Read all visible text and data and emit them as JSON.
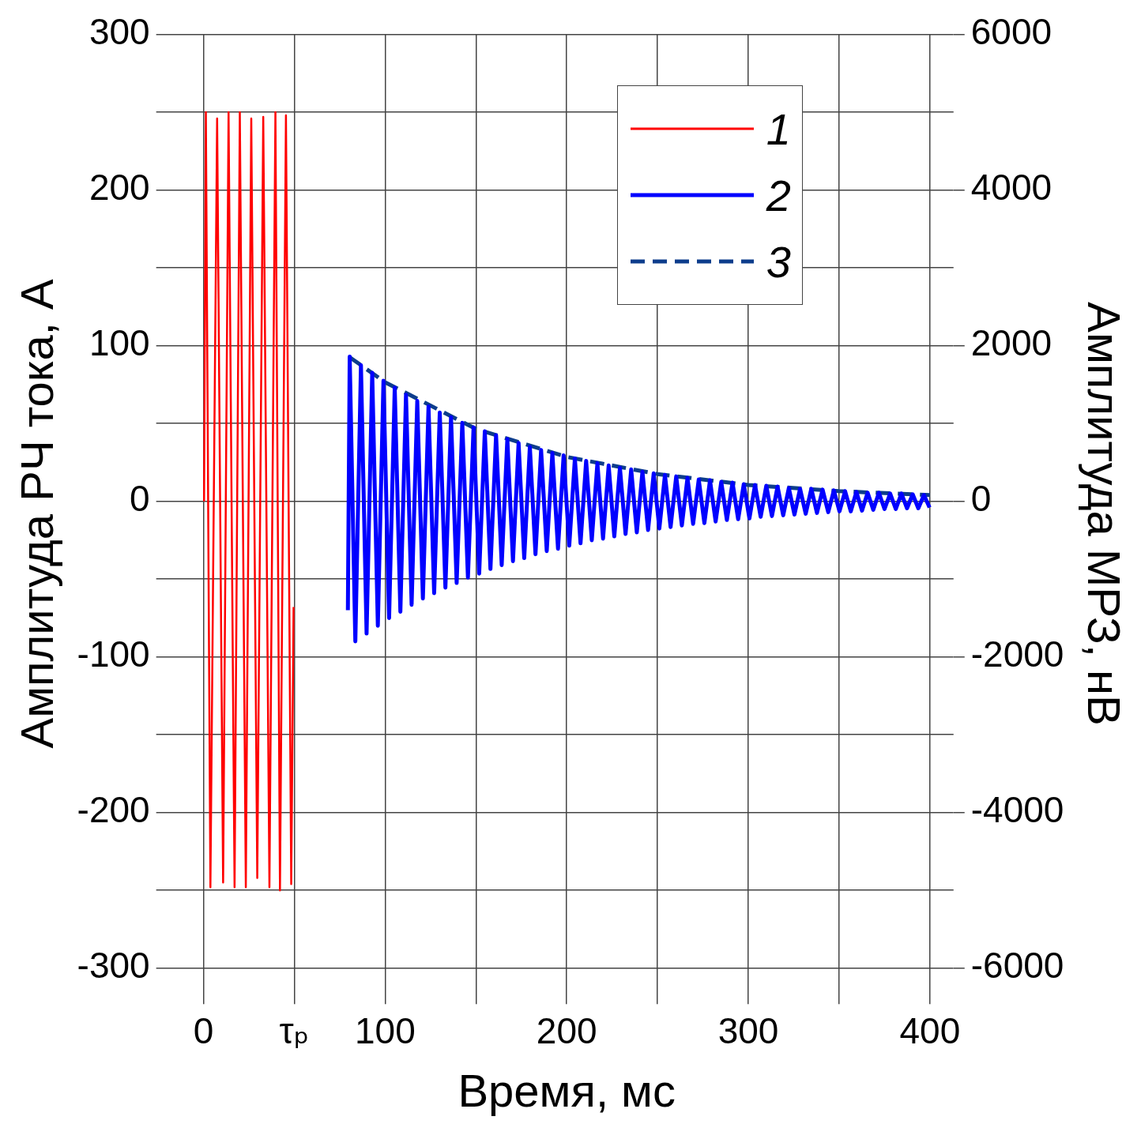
{
  "chart_data": {
    "type": "line",
    "xlabel": "Время, мс",
    "ylabel": "Амплитуда РЧ тока, А",
    "y2label": "Амплитуда МРЗ, нВ",
    "xlim": [
      -13,
      413
    ],
    "xticks": [
      0,
      {
        "value": 50,
        "label": "τₚ"
      },
      100,
      {
        "value": 150,
        "label": null
      },
      200,
      {
        "value": 250,
        "label": null
      },
      300,
      {
        "value": 350,
        "label": null
      },
      400
    ],
    "ylim": [
      -316,
      300
    ],
    "yticks": [
      -300,
      {
        "value": -250,
        "label": null
      },
      -200,
      {
        "value": -150,
        "label": null
      },
      -100,
      {
        "value": -50,
        "label": null
      },
      0,
      {
        "value": 50,
        "label": null
      },
      100,
      {
        "value": 150,
        "label": null
      },
      200,
      {
        "value": 250,
        "label": null
      },
      300
    ],
    "y2lim": [
      -6320,
      6000
    ],
    "y2ticks": [
      -6000,
      -4000,
      -2000,
      0,
      2000,
      4000,
      6000
    ],
    "grid": true,
    "legend": "top right",
    "series": [
      {
        "name": "1",
        "color": "#ff0000",
        "x": [
          0.3,
          1.3,
          3.8,
          7.5,
          10.8,
          13.8,
          17.1,
          20,
          23.3,
          26.3,
          29.6,
          32.9,
          36.3,
          39.6,
          42.1,
          45.4,
          48.3,
          49.6
        ],
        "values": [
          0,
          250,
          -248,
          246,
          -245,
          250,
          -248,
          250,
          -248,
          246,
          -242,
          247,
          -248,
          250,
          -250,
          248,
          -246,
          -68
        ]
      },
      {
        "name": "2",
        "color": "#0000ff",
        "axis": "y2",
        "x": [
          79.5,
          80.5,
          83.6,
          86.7,
          89.8,
          92.9,
          96.0,
          99.1,
          102.2,
          105.3,
          108.4,
          111.5,
          114.6,
          117.7,
          120.8,
          123.9,
          127.0,
          130.1,
          133.2,
          136.3,
          139.4,
          142.5,
          145.6,
          148.7,
          151.8,
          154.9,
          158.0,
          161.1,
          164.2,
          167.3,
          170.4,
          173.5,
          176.6,
          179.7,
          182.8,
          185.9,
          189.0,
          192.1,
          195.2,
          198.3,
          201.4,
          204.5,
          207.6,
          210.7,
          213.8,
          216.9,
          220.0,
          223.1,
          226.2,
          229.3,
          232.4,
          235.5,
          238.6,
          241.7,
          244.8,
          247.9,
          251.0,
          254.1,
          257.2,
          260.3,
          263.4,
          266.5,
          269.6,
          272.7,
          275.8,
          278.9,
          282.0,
          285.1,
          288.2,
          291.3,
          294.4,
          297.5,
          300.6,
          303.7,
          306.8,
          309.9,
          313.0,
          316.1,
          319.2,
          322.3,
          325.4,
          328.5,
          331.6,
          334.7,
          337.8,
          340.9,
          344.0,
          347.1,
          350.2,
          353.3,
          356.4,
          359.5,
          362.6,
          365.7,
          368.8,
          371.9,
          375.0,
          378.1,
          381.2,
          384.3,
          387.4,
          390.5,
          393.6,
          396.7,
          399.8
        ],
        "values": [
          -1400,
          1860,
          -1800,
          1750,
          -1700,
          1650,
          -1600,
          1550,
          -1500,
          1460,
          -1420,
          1370,
          -1330,
          1290,
          -1250,
          1220,
          -1180,
          1140,
          -1110,
          1080,
          -1050,
          1010,
          -980,
          950,
          -930,
          900,
          -870,
          850,
          -820,
          800,
          -770,
          750,
          -730,
          700,
          -680,
          660,
          -640,
          620,
          -610,
          590,
          -570,
          550,
          -540,
          520,
          -500,
          490,
          -480,
          460,
          -450,
          430,
          -420,
          410,
          -400,
          380,
          -370,
          360,
          -350,
          340,
          -330,
          320,
          -310,
          300,
          -290,
          280,
          -280,
          270,
          -260,
          250,
          -240,
          240,
          -230,
          220,
          -220,
          210,
          -200,
          200,
          -190,
          190,
          -180,
          170,
          -170,
          160,
          -160,
          160,
          -150,
          150,
          -140,
          140,
          -130,
          130,
          -130,
          120,
          -120,
          110,
          -110,
          110,
          -100,
          100,
          -100,
          100,
          -90,
          90,
          -90,
          80,
          -80
        ]
      },
      {
        "name": "3",
        "color": "#0d3d8c",
        "axis": "y2",
        "line_style": "dashed",
        "x": [
          80,
          100,
          150,
          200,
          250,
          300,
          350,
          400
        ],
        "values": [
          1860,
          1530,
          930,
          570,
          350,
          210,
          130,
          80
        ]
      }
    ]
  }
}
